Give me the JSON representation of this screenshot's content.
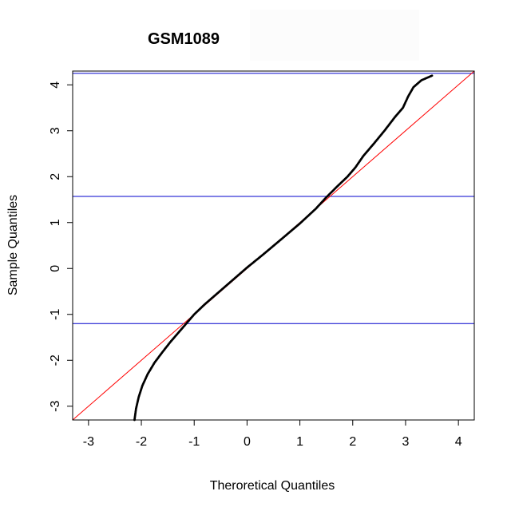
{
  "chart_data": {
    "type": "scatter",
    "subtype": "normal-qq-plot",
    "title": "GSM1089",
    "xlabel": "Theroretical Quantiles",
    "ylabel": "Sample Quantiles",
    "xlim": [
      -3.3,
      4.3
    ],
    "ylim": [
      -3.3,
      4.3
    ],
    "x_ticks": [
      -3,
      -2,
      -1,
      0,
      1,
      2,
      3,
      4
    ],
    "y_ticks": [
      -3,
      -2,
      -1,
      0,
      1,
      2,
      3,
      4
    ],
    "x_tick_labels": [
      "-3",
      "-2",
      "-1",
      "0",
      "1",
      "2",
      "3",
      "4"
    ],
    "y_tick_labels": [
      "-3",
      "-2",
      "-1",
      "0",
      "1",
      "2",
      "3",
      "4"
    ],
    "reference_line": {
      "intercept": 0,
      "slope": 1,
      "color": "#ff0000"
    },
    "horizontal_lines": [
      {
        "y": 4.25,
        "color": "#0000cc"
      },
      {
        "y": 1.57,
        "color": "#0000cc"
      },
      {
        "y": -1.2,
        "color": "#0000cc"
      }
    ],
    "series": [
      {
        "name": "sample",
        "color": "#000000",
        "points": [
          [
            -2.13,
            -3.3
          ],
          [
            -2.1,
            -3.05
          ],
          [
            -2.05,
            -2.8
          ],
          [
            -1.98,
            -2.55
          ],
          [
            -1.88,
            -2.3
          ],
          [
            -1.75,
            -2.05
          ],
          [
            -1.6,
            -1.82
          ],
          [
            -1.45,
            -1.6
          ],
          [
            -1.3,
            -1.4
          ],
          [
            -1.15,
            -1.2
          ],
          [
            -1.0,
            -1.0
          ],
          [
            -0.8,
            -0.78
          ],
          [
            -0.5,
            -0.48
          ],
          [
            -0.2,
            -0.18
          ],
          [
            0.0,
            0.02
          ],
          [
            0.3,
            0.3
          ],
          [
            0.6,
            0.59
          ],
          [
            1.0,
            0.98
          ],
          [
            1.3,
            1.3
          ],
          [
            1.5,
            1.55
          ],
          [
            1.7,
            1.78
          ],
          [
            1.9,
            2.0
          ],
          [
            2.05,
            2.2
          ],
          [
            2.2,
            2.45
          ],
          [
            2.4,
            2.72
          ],
          [
            2.6,
            3.0
          ],
          [
            2.8,
            3.3
          ],
          [
            2.95,
            3.5
          ],
          [
            3.05,
            3.75
          ],
          [
            3.15,
            3.95
          ],
          [
            3.3,
            4.1
          ],
          [
            3.5,
            4.2
          ]
        ]
      }
    ]
  }
}
